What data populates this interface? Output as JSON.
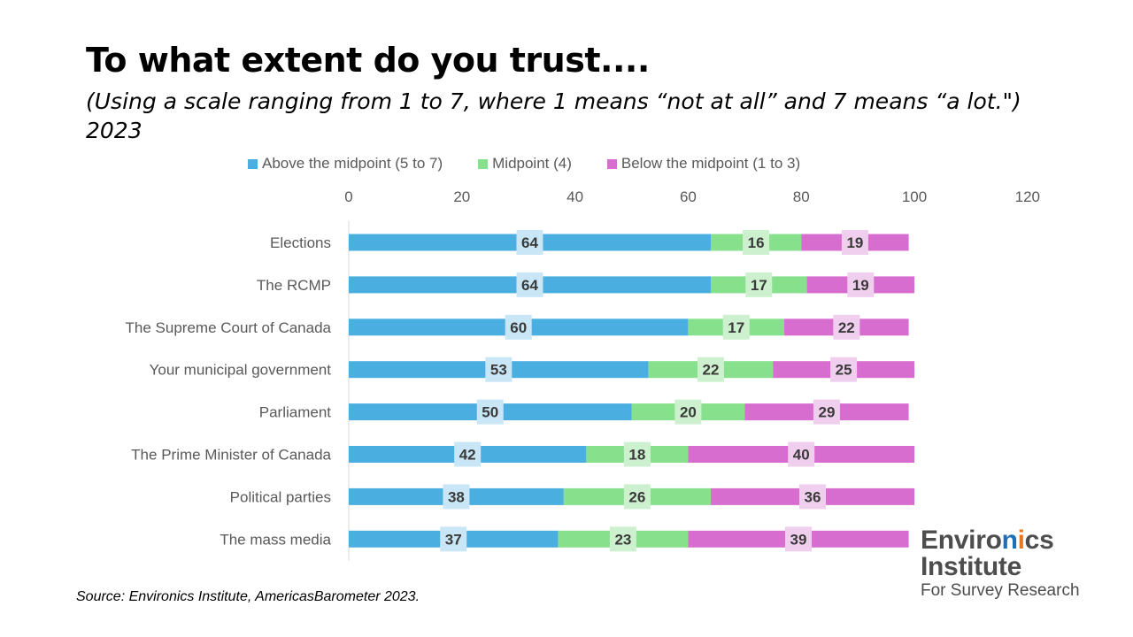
{
  "title": "To what extent do you trust....",
  "subtitle": "(Using a scale ranging from 1 to 7, where 1 means “not at all” and 7 means “a lot.\") 2023",
  "source": "Source: Environics Institute, AmericasBarometer 2023.",
  "logo": {
    "line1": "Environics",
    "line2": "Institute",
    "line3": "For Survey Research"
  },
  "colors": {
    "above": "#4aaee0",
    "mid": "#86e08c",
    "below": "#d86dd0",
    "above_label_bg": "#c9e6f6",
    "mid_label_bg": "#cdf1cf",
    "below_label_bg": "#f0cfee",
    "label_text": "#3a3a3a",
    "axis_text": "#595959"
  },
  "chart_data": {
    "type": "bar",
    "orientation": "horizontal",
    "stacked": true,
    "categories": [
      "Elections",
      "The RCMP",
      "The Supreme Court of Canada",
      "Your municipal government",
      "Parliament",
      "The Prime Minister of Canada",
      "Political parties",
      "The mass media"
    ],
    "series": [
      {
        "name": "Above the midpoint (5 to 7)",
        "values": [
          64,
          64,
          60,
          53,
          50,
          42,
          38,
          37
        ]
      },
      {
        "name": "Midpoint (4)",
        "values": [
          16,
          17,
          17,
          22,
          20,
          18,
          26,
          23
        ]
      },
      {
        "name": "Below the midpoint (1 to 3)",
        "values": [
          19,
          19,
          22,
          25,
          29,
          40,
          36,
          39
        ]
      }
    ],
    "xlim": [
      0,
      120
    ],
    "xticks": [
      0,
      20,
      40,
      60,
      80,
      100,
      120
    ],
    "x_axis_position": "top",
    "legend_position": "top",
    "grid": false,
    "data_labels": true
  }
}
